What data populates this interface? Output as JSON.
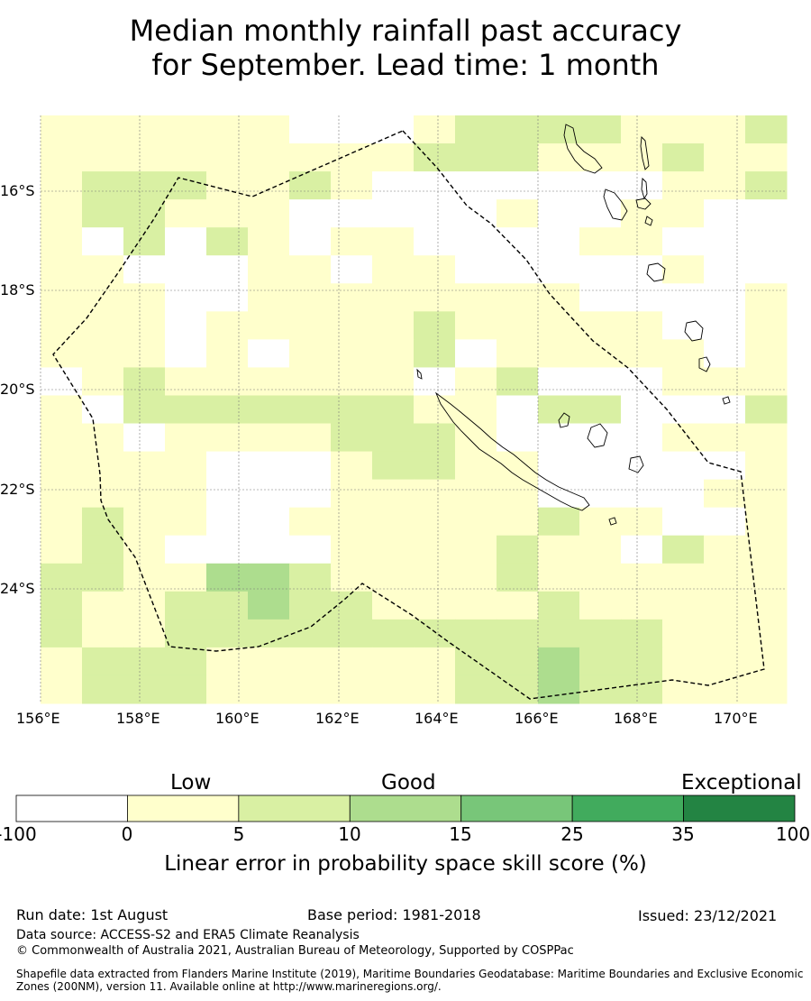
{
  "title": {
    "line1": "Median monthly rainfall past accuracy",
    "line2": "for September. Lead time: 1 month"
  },
  "map": {
    "lat_labels": [
      "16°S",
      "18°S",
      "20°S",
      "22°S",
      "24°S"
    ],
    "lon_labels": [
      "156°E",
      "158°E",
      "160°E",
      "162°E",
      "164°E",
      "166°E",
      "168°E",
      "170°E"
    ],
    "extent": {
      "lon_min": 156,
      "lon_max": 171,
      "lat_min": -26.5,
      "lat_max": -14.7
    }
  },
  "colorbar": {
    "categories": [
      "Low",
      "Good",
      "Exceptional"
    ],
    "ticks": [
      "-100",
      "0",
      "5",
      "10",
      "15",
      "25",
      "35",
      "100"
    ],
    "colors": [
      "#ffffff",
      "#ffffcc",
      "#d9f0a3",
      "#addd8e",
      "#78c679",
      "#41ab5d",
      "#238443"
    ],
    "label": "Linear error in probability space skill score (%)"
  },
  "footer": {
    "run_date": "Run date: 1st August",
    "base_period": "Base period: 1981-2018",
    "issued": "Issued: 23/12/2021",
    "data_source": "Data source: ACCESS-S2 and ERA5 Climate Reanalysis",
    "copyright": "© Commonwealth of Australia 2021, Australian Bureau of Meteorology, Supported by COSPPac",
    "shapefile": "Shapefile data extracted from Flanders Marine Institute (2019), Maritime Boundaries Geodatabase: Maritime Boundaries and Exclusive Economic Zones (200NM), version 11. Available online at http://www.marineregions.org/."
  }
}
